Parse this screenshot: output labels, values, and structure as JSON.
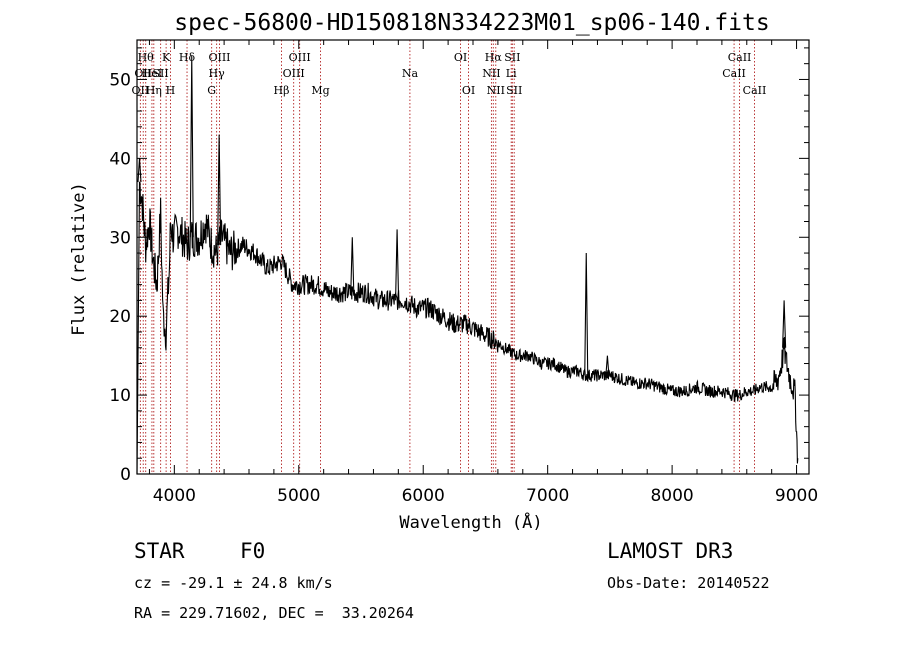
{
  "chart_data": {
    "type": "line",
    "title": "spec-56800-HD150818N334223M01_sp06-140.fits",
    "xlabel": "Wavelength (Å)",
    "ylabel": "Flux (relative)",
    "xlim": [
      3700,
      9100
    ],
    "ylim": [
      0,
      55
    ],
    "xticks": [
      4000,
      5000,
      6000,
      7000,
      8000,
      9000
    ],
    "yticks": [
      0,
      10,
      20,
      30,
      40,
      50
    ],
    "series": [
      {
        "name": "flux",
        "x": [
          3700,
          3720,
          3740,
          3770,
          3800,
          3830,
          3860,
          3890,
          3910,
          3933,
          3960,
          3970,
          3990,
          4030,
          4070,
          4102,
          4140,
          4200,
          4250,
          4300,
          4340,
          4380,
          4450,
          4550,
          4650,
          4750,
          4861,
          4950,
          5050,
          5150,
          5250,
          5350,
          5450,
          5550,
          5650,
          5750,
          5850,
          5950,
          6050,
          6150,
          6250,
          6350,
          6450,
          6563,
          6650,
          6750,
          6850,
          6950,
          7050,
          7150,
          7250,
          7300,
          7330,
          7400,
          7500,
          7600,
          7700,
          7800,
          7900,
          8000,
          8100,
          8200,
          8300,
          8400,
          8500,
          8542,
          8600,
          8662,
          8700,
          8800,
          8850,
          8880,
          8900,
          8920,
          8950,
          8990,
          9000,
          9010
        ],
        "y": [
          0,
          37,
          35,
          29,
          32,
          27,
          24,
          33,
          20,
          18,
          26,
          32,
          30,
          31,
          30,
          29,
          30,
          30,
          32,
          29,
          28,
          30,
          28,
          29,
          28,
          26,
          27,
          24,
          24,
          24,
          23,
          23,
          23,
          23,
          22,
          22,
          22,
          21,
          21,
          20,
          19,
          19,
          18,
          17,
          16,
          15,
          15,
          14,
          14,
          13,
          13,
          12.5,
          12.5,
          12.5,
          12.5,
          12,
          11.5,
          11.5,
          11,
          10.5,
          10.5,
          11,
          10.5,
          10.5,
          10,
          10,
          10.5,
          10.5,
          11,
          11,
          12,
          14,
          16,
          14,
          12,
          10,
          5,
          2
        ]
      }
    ],
    "spikes": [
      {
        "x": 3720,
        "y": 40
      },
      {
        "x": 4140,
        "y": 53
      },
      {
        "x": 4360,
        "y": 43
      },
      {
        "x": 5430,
        "y": 30
      },
      {
        "x": 5790,
        "y": 31
      },
      {
        "x": 7310,
        "y": 28
      },
      {
        "x": 7480,
        "y": 15
      },
      {
        "x": 8900,
        "y": 22
      }
    ],
    "spectral_lines": [
      {
        "x": 3727,
        "label": "OII",
        "row": 3
      },
      {
        "x": 3750,
        "label": "OII",
        "row": 2
      },
      {
        "x": 3770,
        "label": "Hθ",
        "row": 1
      },
      {
        "x": 3820,
        "label": "HeI",
        "row": 2
      },
      {
        "x": 3835,
        "label": "Hη",
        "row": 3
      },
      {
        "x": 3890,
        "label": "SII",
        "row": 2
      },
      {
        "x": 3934,
        "label": "K",
        "row": 1
      },
      {
        "x": 3969,
        "label": "H",
        "row": 3
      },
      {
        "x": 4102,
        "label": "Hδ",
        "row": 1
      },
      {
        "x": 4300,
        "label": "G",
        "row": 3
      },
      {
        "x": 4340,
        "label": "Hγ",
        "row": 2
      },
      {
        "x": 4363,
        "label": "OIII",
        "row": 1
      },
      {
        "x": 4861,
        "label": "Hβ",
        "row": 3
      },
      {
        "x": 4959,
        "label": "OIII",
        "row": 2
      },
      {
        "x": 5007,
        "label": "OIII",
        "row": 1
      },
      {
        "x": 5175,
        "label": "Mg",
        "row": 3
      },
      {
        "x": 5893,
        "label": "Na",
        "row": 2
      },
      {
        "x": 6300,
        "label": "OI",
        "row": 1
      },
      {
        "x": 6364,
        "label": "OI",
        "row": 3
      },
      {
        "x": 6548,
        "label": "NII",
        "row": 2
      },
      {
        "x": 6563,
        "label": "Hα",
        "row": 1
      },
      {
        "x": 6583,
        "label": "NII",
        "row": 3
      },
      {
        "x": 6707,
        "label": "Li",
        "row": 2
      },
      {
        "x": 6716,
        "label": "SII",
        "row": 1
      },
      {
        "x": 6731,
        "label": "SII",
        "row": 3
      },
      {
        "x": 8498,
        "label": "CaII",
        "row": 2
      },
      {
        "x": 8542,
        "label": "CaII",
        "row": 1
      },
      {
        "x": 8662,
        "label": "CaII",
        "row": 3
      }
    ]
  },
  "info": {
    "object_type": "STAR",
    "subclass": "F0",
    "survey": "LAMOST DR3",
    "cz": "cz = -29.1 ± 24.8 km/s",
    "obs_date": "Obs-Date: 20140522",
    "coords": "RA = 229.71602, DEC =  33.20264"
  }
}
